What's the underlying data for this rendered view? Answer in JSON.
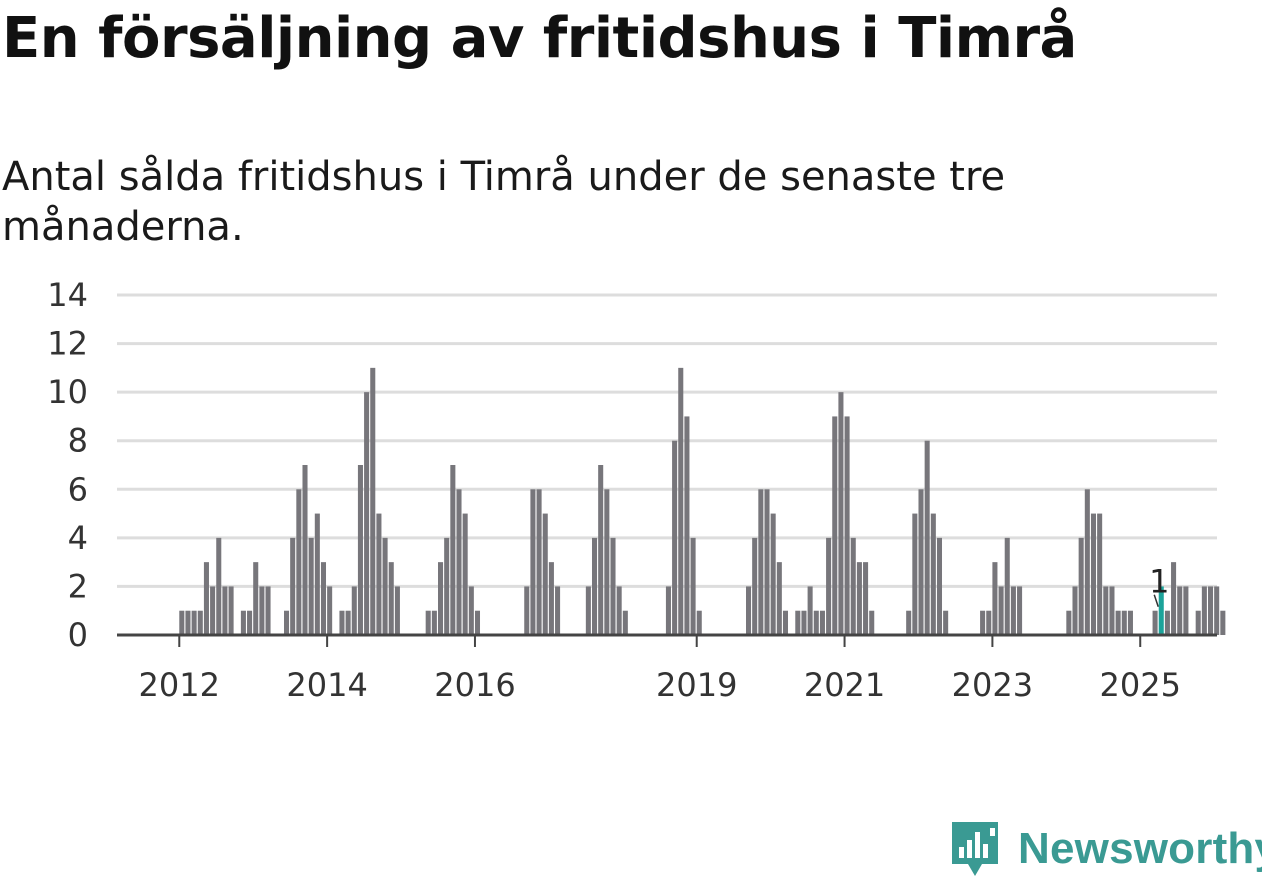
{
  "title": "En försäljning av fritidshus i Timrå",
  "subtitle": "Antal sålda fritidshus i Timrå under de senaste tre månaderna.",
  "brand": {
    "name": "Newsworthy",
    "icon": "bar-chart-speech-bubble-icon",
    "color": "#3a9a93"
  },
  "colors": {
    "bar": "#77767b",
    "highlight": "#1ca39a",
    "grid": "#dddddd",
    "axis": "#444444"
  },
  "chart_data": {
    "type": "bar",
    "title": "En försäljning av fritidshus i Timrå",
    "subtitle": "Antal sålda fritidshus i Timrå under de senaste tre månaderna.",
    "xlabel": "",
    "ylabel": "",
    "ylim": [
      0,
      14
    ],
    "yticks": [
      0,
      2,
      4,
      6,
      8,
      10,
      12,
      14
    ],
    "xticks": [
      "2012",
      "2014",
      "2016",
      "2019",
      "2021",
      "2023",
      "2025"
    ],
    "grid": true,
    "legend": "none",
    "start_month": "2011-05",
    "x_unit": "month",
    "values": [
      0,
      0,
      0,
      0,
      0,
      0,
      0,
      0,
      1,
      1,
      1,
      1,
      3,
      2,
      4,
      2,
      2,
      0,
      1,
      1,
      3,
      2,
      2,
      0,
      0,
      1,
      4,
      6,
      7,
      4,
      5,
      3,
      2,
      0,
      1,
      1,
      2,
      7,
      10,
      11,
      5,
      4,
      3,
      2,
      0,
      0,
      0,
      0,
      1,
      1,
      3,
      4,
      7,
      6,
      5,
      2,
      1,
      0,
      0,
      0,
      0,
      0,
      0,
      0,
      2,
      6,
      6,
      5,
      3,
      2,
      0,
      0,
      0,
      0,
      2,
      4,
      7,
      6,
      4,
      2,
      1,
      0,
      0,
      0,
      0,
      0,
      0,
      2,
      8,
      11,
      9,
      4,
      1,
      0,
      0,
      0,
      0,
      0,
      0,
      0,
      2,
      4,
      6,
      6,
      5,
      3,
      1,
      0,
      1,
      1,
      2,
      1,
      1,
      4,
      9,
      10,
      9,
      4,
      3,
      3,
      1,
      0,
      0,
      0,
      0,
      0,
      1,
      5,
      6,
      8,
      5,
      4,
      1,
      0,
      0,
      0,
      0,
      0,
      1,
      1,
      3,
      2,
      4,
      2,
      2,
      0,
      0,
      0,
      0,
      0,
      0,
      0,
      1,
      2,
      4,
      6,
      5,
      5,
      2,
      2,
      1,
      1,
      1,
      0,
      0,
      0,
      1,
      2,
      1,
      3,
      2,
      2,
      0,
      1,
      2,
      2,
      2,
      1
    ],
    "highlight": {
      "index": 167,
      "value": 1,
      "label": "1"
    }
  }
}
